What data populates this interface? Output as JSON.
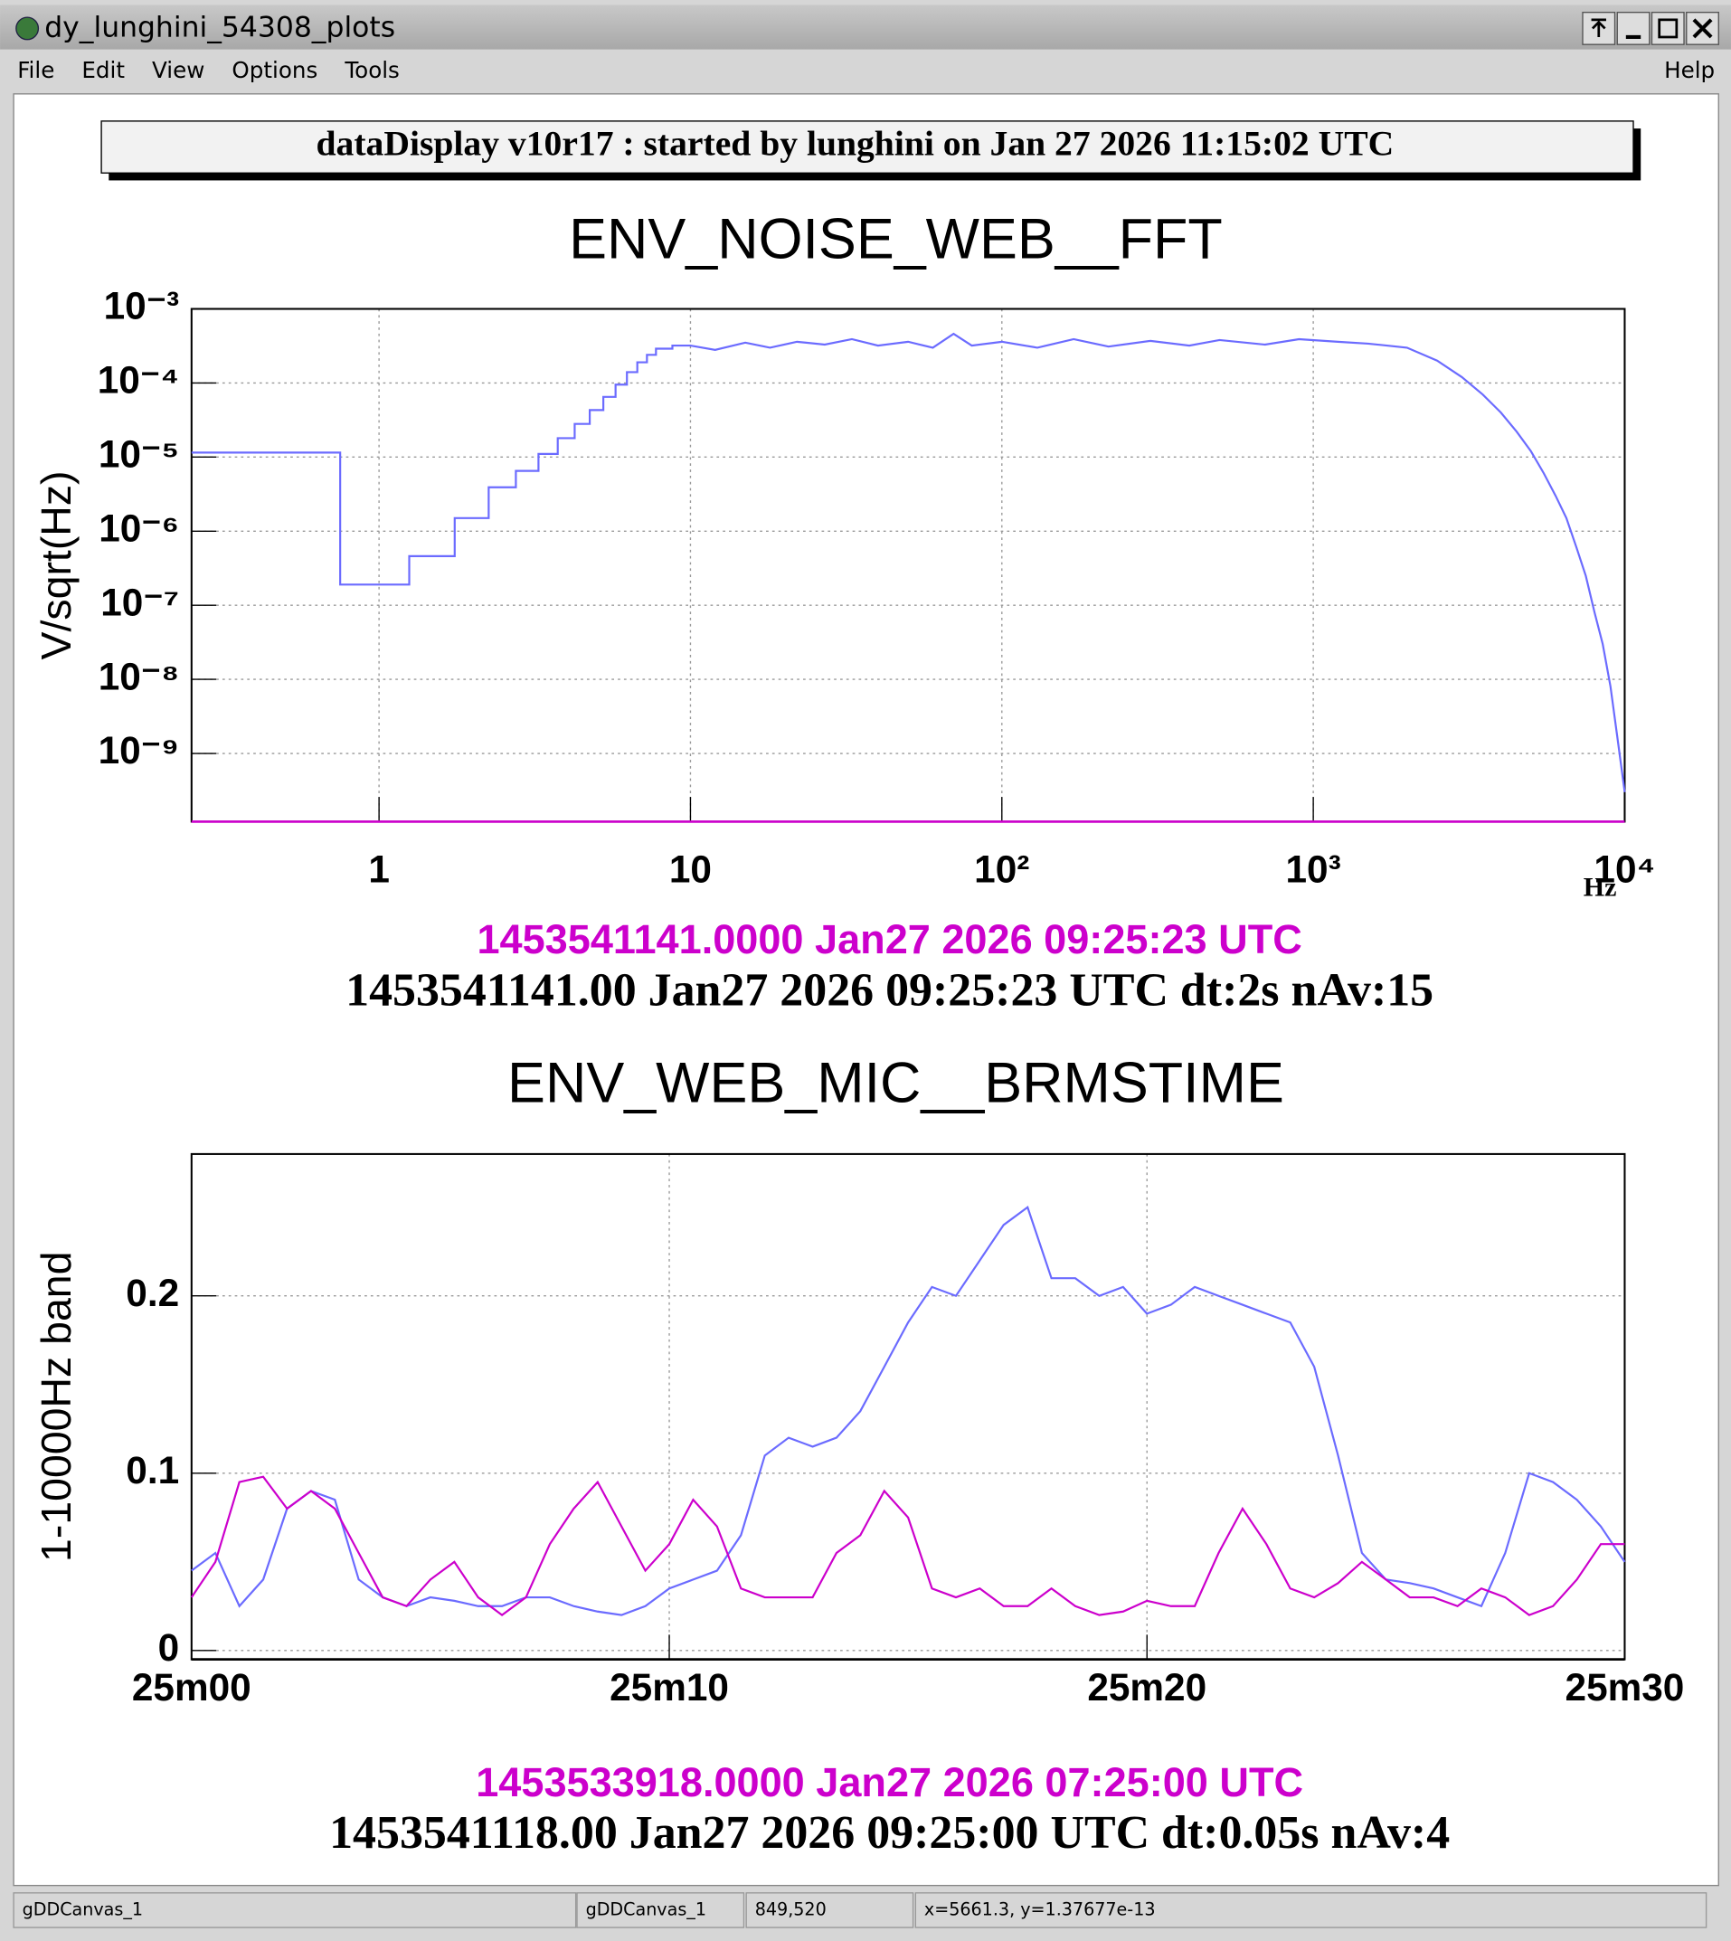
{
  "window": {
    "title": "dy_lunghini_54308_plots",
    "menu": [
      "File",
      "Edit",
      "View",
      "Options",
      "Tools"
    ],
    "help": "Help",
    "status": [
      "gDDCanvas_1",
      "gDDCanvas_1",
      "849,520",
      "x=5661.3, y=1.37677e-13"
    ]
  },
  "header": "dataDisplay v10r17 : started by lunghini on Jan 27 2026 11:15:02 UTC",
  "chart_data": [
    {
      "type": "line",
      "title": "ENV_NOISE_WEB__FFT",
      "xlabel": "Hz",
      "ylabel": "V/sqrt(Hz)",
      "log_x": true,
      "log_y": true,
      "grid": true,
      "xlim": [
        0.25,
        10000
      ],
      "ylim": [
        1.2e-10,
        0.001
      ],
      "xticks": [
        1,
        10,
        {
          "value": 100,
          "label": "10²"
        },
        {
          "value": 1000,
          "label": "10³"
        },
        {
          "value": 10000,
          "label": "10⁴"
        }
      ],
      "yticks": [
        {
          "value": 0.001,
          "label": "10⁻³"
        },
        {
          "value": 0.0001,
          "label": "10⁻⁴"
        },
        {
          "value": 1e-05,
          "label": "10⁻⁵"
        },
        {
          "value": 1e-06,
          "label": "10⁻⁶"
        },
        {
          "value": 1e-07,
          "label": "10⁻⁷"
        },
        {
          "value": 1e-08,
          "label": "10⁻⁸"
        },
        {
          "value": 1e-09,
          "label": "10⁻⁹"
        }
      ],
      "series": [
        {
          "color": "#6b6bff",
          "x": [
            0.25,
            0.75,
            0.75,
            1.25,
            1.25,
            1.75,
            1.75,
            2.25,
            2.25,
            2.75,
            2.75,
            3.25,
            3.25,
            3.75,
            3.75,
            4.25,
            4.25,
            4.75,
            4.75,
            5.25,
            5.25,
            5.75,
            5.75,
            6.25,
            6.25,
            6.75,
            6.75,
            7.25,
            7.25,
            7.75,
            7.75,
            8.75,
            8.75,
            10,
            12,
            15,
            18,
            22,
            27,
            33,
            40,
            50,
            60,
            70,
            80,
            100,
            130,
            170,
            220,
            300,
            400,
            500,
            700,
            900,
            1200,
            1500,
            2000,
            2500,
            3000,
            3500,
            4000,
            4500,
            5000,
            5500,
            6000,
            6500,
            7000,
            7500,
            8000,
            8500,
            9000,
            9500,
            10000
          ],
          "values": [
            1.15e-05,
            1.15e-05,
            1.9e-07,
            1.9e-07,
            4.6e-07,
            4.6e-07,
            1.5e-06,
            1.5e-06,
            3.9e-06,
            3.9e-06,
            6.5e-06,
            6.5e-06,
            1.1e-05,
            1.1e-05,
            1.8e-05,
            1.8e-05,
            2.8e-05,
            2.8e-05,
            4.3e-05,
            4.3e-05,
            6.5e-05,
            6.5e-05,
            9.5e-05,
            9.5e-05,
            0.00014,
            0.00014,
            0.00019,
            0.00019,
            0.00024,
            0.00024,
            0.00029,
            0.00029,
            0.00032,
            0.00032,
            0.00028,
            0.00035,
            0.0003,
            0.00036,
            0.00033,
            0.00039,
            0.00032,
            0.00036,
            0.0003,
            0.00046,
            0.00032,
            0.00036,
            0.0003,
            0.00039,
            0.00031,
            0.00037,
            0.00032,
            0.00038,
            0.00033,
            0.00039,
            0.00036,
            0.00034,
            0.0003,
            0.0002,
            0.00012,
            7e-05,
            4e-05,
            2.2e-05,
            1.2e-05,
            6e-06,
            3e-06,
            1.5e-06,
            6e-07,
            2.5e-07,
            8e-08,
            3e-08,
            8e-09,
            1.5e-09,
            3e-10
          ]
        }
      ],
      "annotations": [
        {
          "text": "1453541141.0000 Jan27 2026 09:25:23 UTC",
          "color": "#cc00cc"
        },
        {
          "text": "1453541141.00 Jan27 2026 09:25:23 UTC dt:2s nAv:15",
          "color": "#000000"
        }
      ]
    },
    {
      "type": "line",
      "title": "ENV_WEB_MIC__BRMSTIME",
      "ylabel": "1-10000Hz band",
      "log_x": false,
      "log_y": false,
      "grid": true,
      "xlim": [
        1500,
        1530
      ],
      "ylim": [
        -0.005,
        0.28
      ],
      "xticks": [
        {
          "value": 1500,
          "label": "25m00"
        },
        {
          "value": 1510,
          "label": "25m10"
        },
        {
          "value": 1520,
          "label": "25m20"
        },
        {
          "value": 1530,
          "label": "25m30"
        }
      ],
      "yticks": [
        0,
        0.1,
        0.2
      ],
      "x": [
        1500,
        1500.5,
        1501,
        1501.5,
        1502,
        1502.5,
        1503,
        1503.5,
        1504,
        1504.5,
        1505,
        1505.5,
        1506,
        1506.5,
        1507,
        1507.5,
        1508,
        1508.5,
        1509,
        1509.5,
        1510,
        1510.5,
        1511,
        1511.5,
        1512,
        1512.5,
        1513,
        1513.5,
        1514,
        1514.5,
        1515,
        1515.5,
        1516,
        1516.5,
        1517,
        1517.5,
        1518,
        1518.5,
        1519,
        1519.5,
        1520,
        1520.5,
        1521,
        1521.5,
        1522,
        1522.5,
        1523,
        1523.5,
        1524,
        1524.5,
        1525,
        1525.5,
        1526,
        1526.5,
        1527,
        1527.5,
        1528,
        1528.5,
        1529,
        1529.5,
        1530
      ],
      "series": [
        {
          "color": "#6b6bff",
          "values": [
            0.045,
            0.055,
            0.025,
            0.04,
            0.08,
            0.09,
            0.085,
            0.04,
            0.03,
            0.025,
            0.03,
            0.028,
            0.025,
            0.025,
            0.03,
            0.03,
            0.025,
            0.022,
            0.02,
            0.025,
            0.035,
            0.04,
            0.045,
            0.065,
            0.11,
            0.12,
            0.115,
            0.12,
            0.135,
            0.16,
            0.185,
            0.205,
            0.2,
            0.22,
            0.24,
            0.25,
            0.21,
            0.21,
            0.2,
            0.205,
            0.19,
            0.195,
            0.205,
            0.2,
            0.195,
            0.19,
            0.185,
            0.16,
            0.11,
            0.055,
            0.04,
            0.038,
            0.035,
            0.03,
            0.025,
            0.055,
            0.1,
            0.095,
            0.085,
            0.07,
            0.05
          ]
        },
        {
          "color": "#cc00cc",
          "values": [
            0.03,
            0.05,
            0.095,
            0.098,
            0.08,
            0.09,
            0.08,
            0.055,
            0.03,
            0.025,
            0.04,
            0.05,
            0.03,
            0.02,
            0.03,
            0.06,
            0.08,
            0.095,
            0.07,
            0.045,
            0.06,
            0.085,
            0.07,
            0.035,
            0.03,
            0.03,
            0.03,
            0.055,
            0.065,
            0.09,
            0.075,
            0.035,
            0.03,
            0.035,
            0.025,
            0.025,
            0.035,
            0.025,
            0.02,
            0.022,
            0.028,
            0.025,
            0.025,
            0.055,
            0.08,
            0.06,
            0.035,
            0.03,
            0.038,
            0.05,
            0.04,
            0.03,
            0.03,
            0.025,
            0.035,
            0.03,
            0.02,
            0.025,
            0.04,
            0.06,
            0.06
          ]
        }
      ],
      "annotations": [
        {
          "text": "1453533918.0000 Jan27 2026 07:25:00 UTC",
          "color": "#cc00cc"
        },
        {
          "text": "1453541118.00 Jan27 2026 09:25:00 UTC dt:0.05s nAv:4",
          "color": "#000000"
        }
      ]
    }
  ]
}
